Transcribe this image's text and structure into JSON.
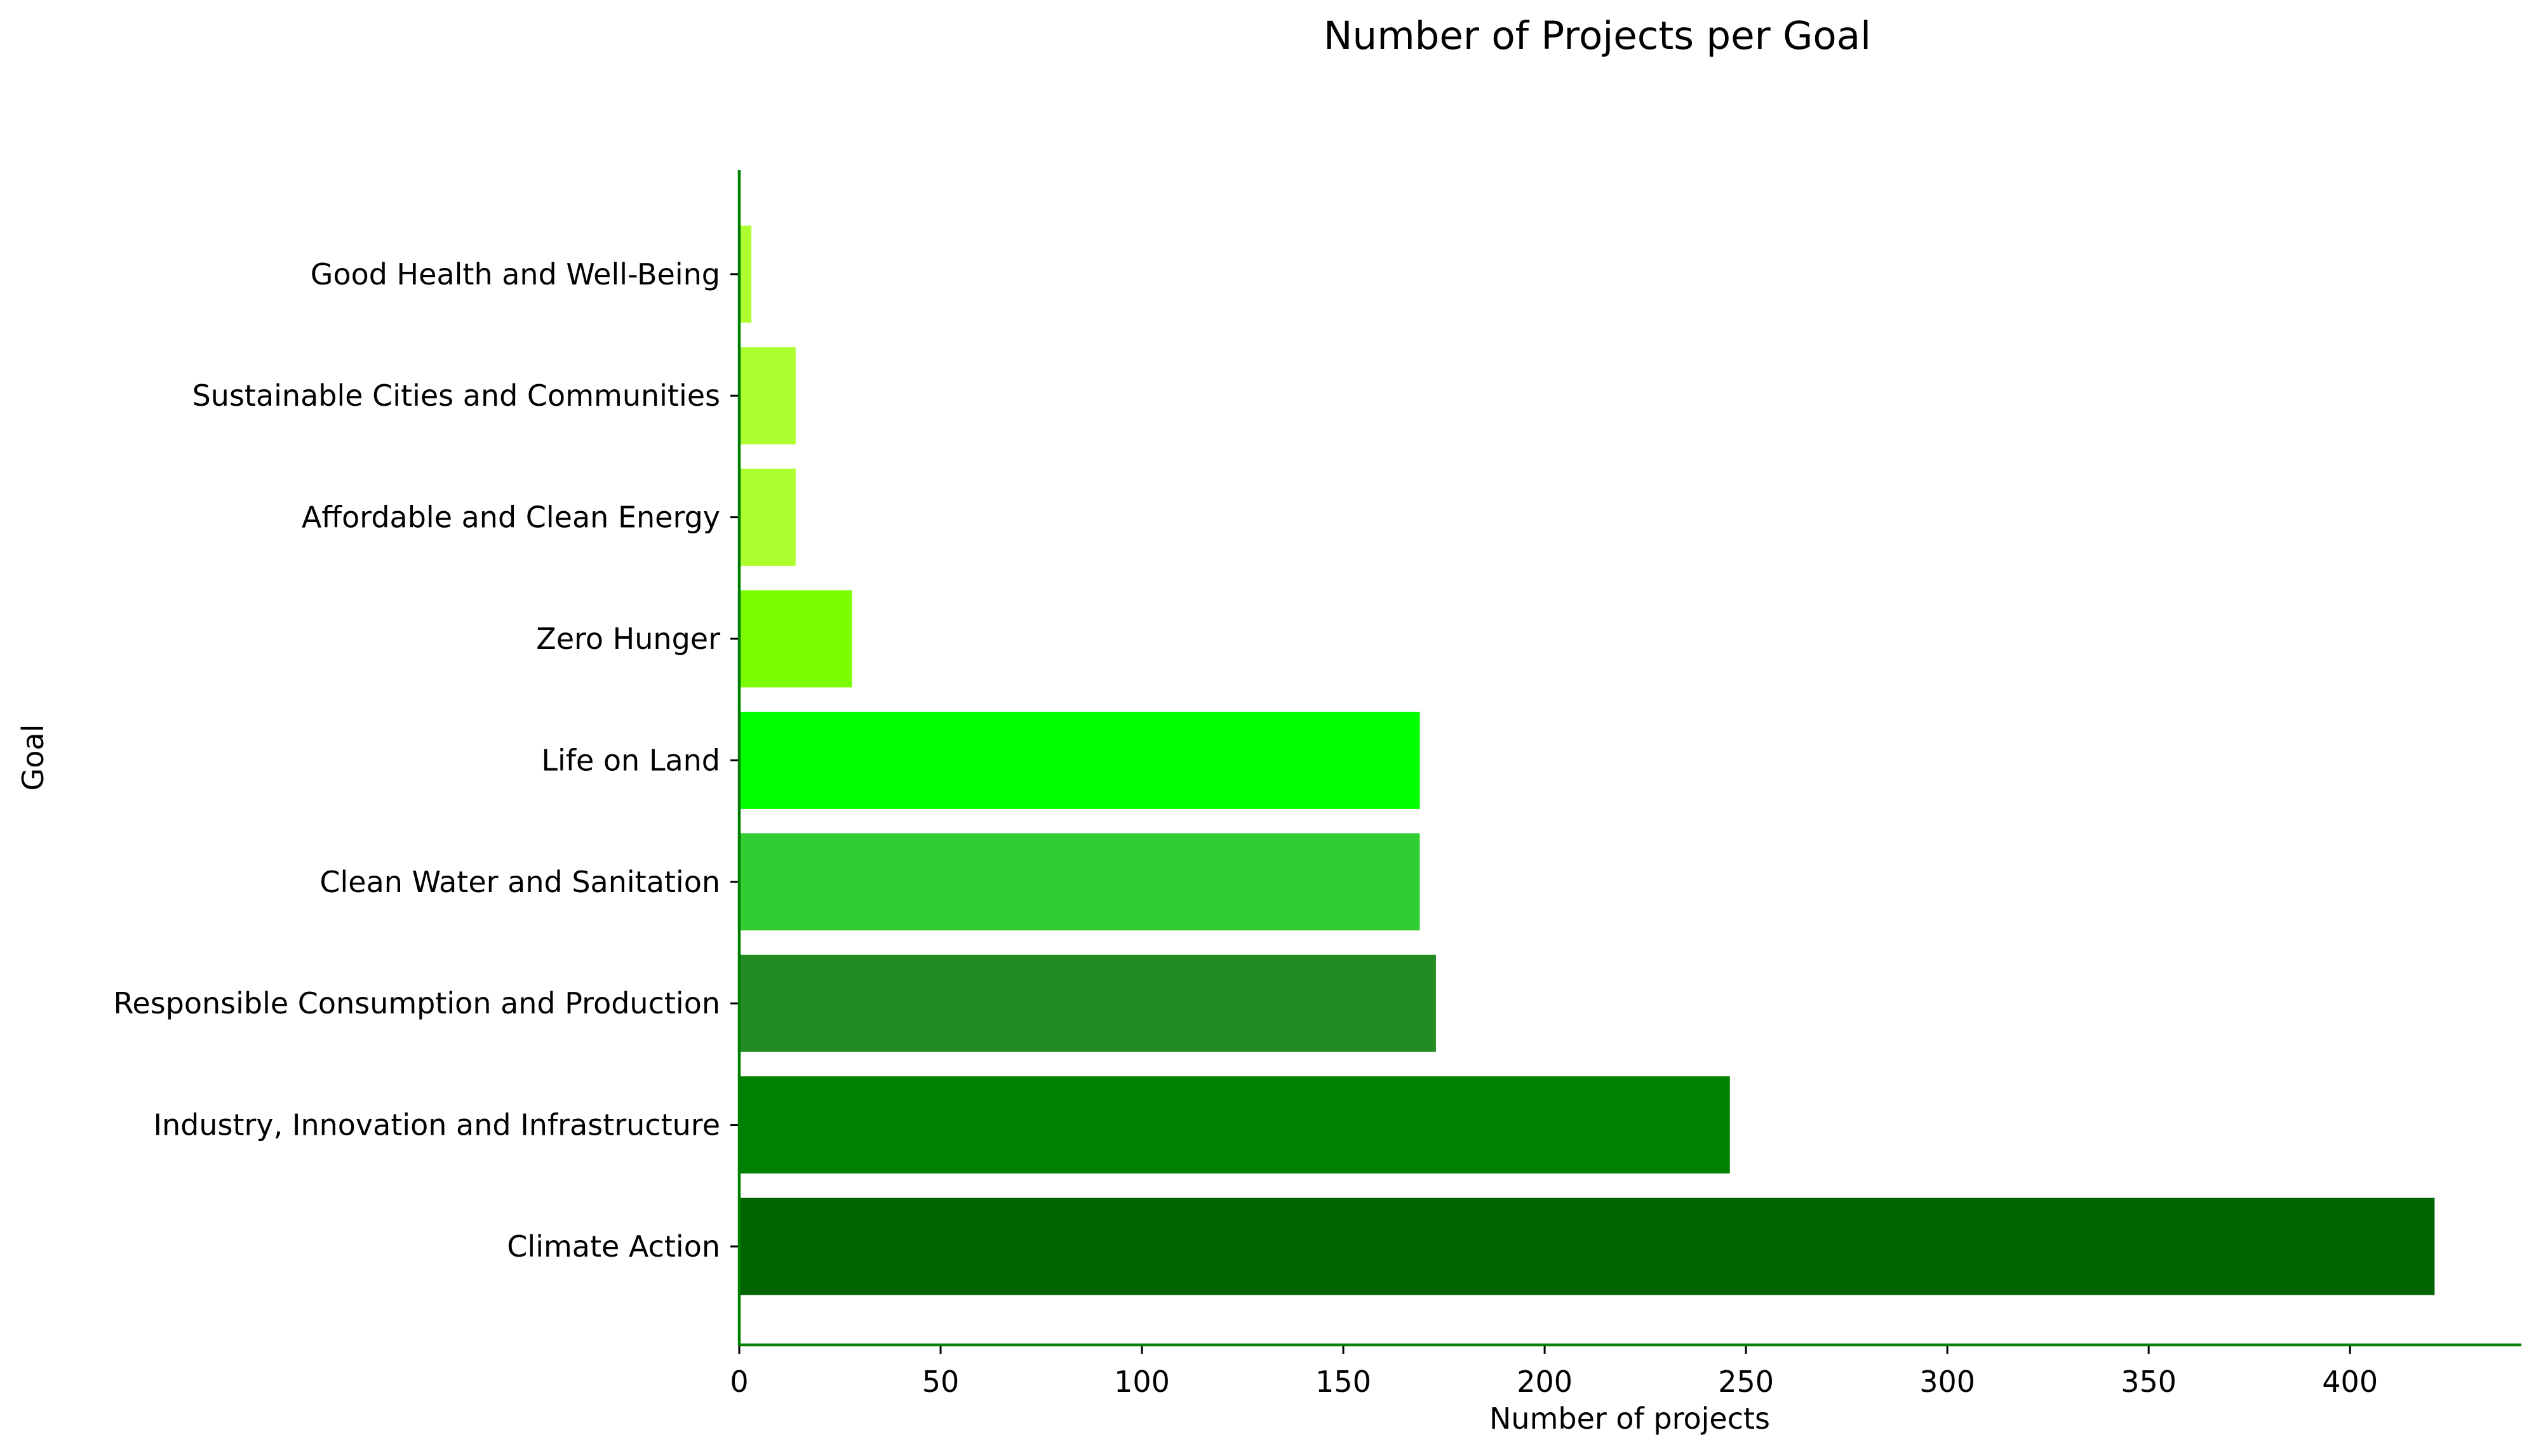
{
  "chart_data": {
    "type": "bar",
    "orientation": "horizontal",
    "title": "Number of Projects per Goal",
    "xlabel": "Number of projects",
    "ylabel": "Goal",
    "xlim": [
      0,
      442
    ],
    "xticks": [
      0,
      50,
      100,
      150,
      200,
      250,
      300,
      350,
      400
    ],
    "grid": false,
    "legend": "none",
    "axis_color": "#008000",
    "categories": [
      "Climate Action",
      "Industry, Innovation and Infrastructure",
      "Responsible Consumption and Production",
      "Clean Water and Sanitation",
      "Life on Land",
      "Zero Hunger",
      "Affordable and Clean Energy",
      "Sustainable Cities and Communities",
      "Good Health and Well-Being"
    ],
    "values": [
      421,
      246,
      173,
      169,
      169,
      28,
      14,
      14,
      3
    ],
    "colors": [
      "#006400",
      "#008000",
      "#228B22",
      "#32CD32",
      "#00FF00",
      "#7CFC00",
      "#ADFF2F",
      "#ADFF2F",
      "#ADFF2F"
    ]
  }
}
